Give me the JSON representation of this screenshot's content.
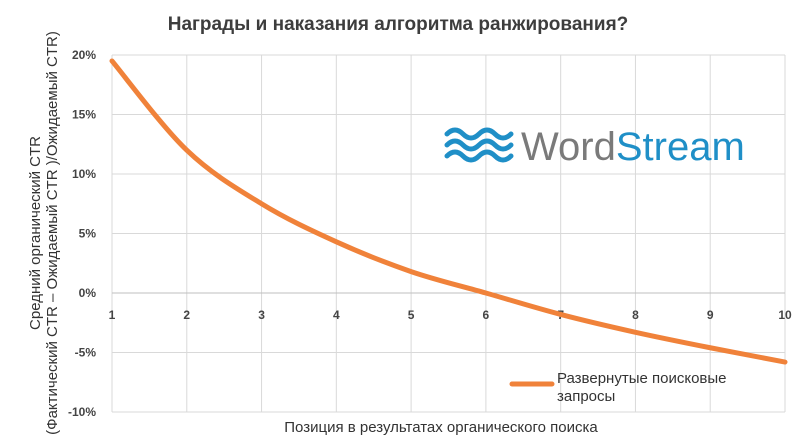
{
  "chart_data": {
    "type": "line",
    "title": "Награды и наказания алгоритма ранжирования?",
    "xlabel": "Позиция в результатах органического поиска",
    "ylabel_lines": [
      "Средний органический CTR",
      "(Фактический CTR – Ожидаемый CTR )/Ожидаемый CTR)"
    ],
    "x_ticks": [
      "1",
      "2",
      "3",
      "4",
      "5",
      "6",
      "7",
      "8",
      "9",
      "10"
    ],
    "y_ticks": [
      "20%",
      "15%",
      "10%",
      "5%",
      "0%",
      "-5%",
      "-10%"
    ],
    "xlim": [
      1,
      10
    ],
    "ylim": [
      -10,
      20
    ],
    "grid": true,
    "legend_position": "bottom-right",
    "series": [
      {
        "name": "Развернутые поисковые запросы",
        "color": "#f0823a",
        "x": [
          1,
          2,
          3,
          4,
          5,
          6,
          7,
          8,
          9,
          10
        ],
        "y": [
          19.5,
          12.0,
          7.5,
          4.3,
          1.8,
          0.0,
          -1.8,
          -3.3,
          -4.6,
          -5.8
        ]
      }
    ]
  },
  "legend": {
    "line1": "Развернутые поисковые",
    "line2": "запросы"
  },
  "logo": {
    "text_word": "Word",
    "text_stream": "Stream",
    "icon": "wave-icon",
    "colors": {
      "word": "#7a7a7a",
      "stream": "#1f8fc7"
    }
  }
}
